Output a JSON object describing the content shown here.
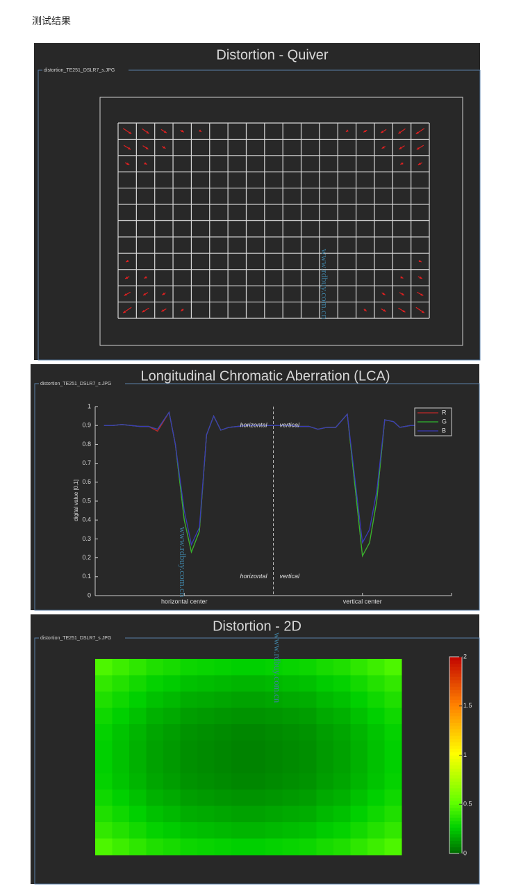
{
  "heading": "测试结果",
  "chart_data": [
    {
      "type": "quiver",
      "title": "Distortion - Quiver",
      "subtitle": "distortion_TE251_DSLR7_s.JPG",
      "watermark": "www.rdbuy.com.cn",
      "grid_cols": 17,
      "grid_rows": 12,
      "color": "#e02020",
      "arrows": [
        [
          0,
          0,
          12,
          8
        ],
        [
          1,
          0,
          10,
          7
        ],
        [
          2,
          0,
          8,
          5
        ],
        [
          3,
          0,
          5,
          3
        ],
        [
          4,
          0,
          3,
          2
        ],
        [
          12,
          0,
          -3,
          2
        ],
        [
          13,
          0,
          -5,
          3
        ],
        [
          14,
          0,
          -8,
          5
        ],
        [
          15,
          0,
          -10,
          7
        ],
        [
          16,
          0,
          -12,
          8
        ],
        [
          0,
          1,
          10,
          6
        ],
        [
          1,
          1,
          8,
          5
        ],
        [
          2,
          1,
          5,
          3
        ],
        [
          14,
          1,
          -5,
          3
        ],
        [
          15,
          1,
          -8,
          5
        ],
        [
          16,
          1,
          -10,
          6
        ],
        [
          0,
          2,
          6,
          3
        ],
        [
          1,
          2,
          4,
          2
        ],
        [
          15,
          2,
          -4,
          2
        ],
        [
          16,
          2,
          -6,
          3
        ],
        [
          0,
          8,
          -4,
          2
        ],
        [
          16,
          8,
          4,
          2
        ],
        [
          0,
          9,
          -6,
          3
        ],
        [
          1,
          9,
          -4,
          2
        ],
        [
          15,
          9,
          4,
          2
        ],
        [
          16,
          9,
          6,
          3
        ],
        [
          0,
          10,
          -9,
          5
        ],
        [
          1,
          10,
          -7,
          4
        ],
        [
          2,
          10,
          -5,
          3
        ],
        [
          14,
          10,
          5,
          3
        ],
        [
          15,
          10,
          7,
          4
        ],
        [
          16,
          10,
          9,
          5
        ],
        [
          0,
          11,
          -12,
          8
        ],
        [
          1,
          11,
          -10,
          6
        ],
        [
          2,
          11,
          -7,
          4
        ],
        [
          3,
          11,
          -4,
          3
        ],
        [
          13,
          11,
          4,
          3
        ],
        [
          14,
          11,
          7,
          4
        ],
        [
          15,
          11,
          10,
          6
        ],
        [
          16,
          11,
          12,
          8
        ]
      ]
    },
    {
      "type": "line",
      "title": "Longitudinal Chromatic Aberration (LCA)",
      "subtitle": "distortion_TE251_DSLR7_s.JPG",
      "watermark": "www.rdbuy.com.cn",
      "y_label": "digital value [0,1]",
      "x": [
        1,
        2,
        3,
        4,
        5,
        6,
        7,
        8.3,
        9,
        10,
        10.8,
        11.7,
        12.5,
        13.3,
        14.1,
        15,
        16,
        17,
        18,
        19,
        20,
        21,
        22,
        23,
        24,
        25,
        26,
        27,
        28.3,
        30,
        30.8,
        31.6,
        32.5,
        33.5,
        34.2,
        35.4,
        36.2
      ],
      "series": [
        {
          "name": "R",
          "color": "#c02828",
          "values": [
            0.9,
            0.9,
            0.905,
            0.9,
            0.895,
            0.895,
            0.87,
            0.97,
            0.8,
            0.4,
            0.23,
            0.34,
            0.85,
            0.95,
            0.875,
            0.89,
            0.895,
            0.9,
            0.9,
            0.9,
            0.9,
            0.9,
            0.9,
            0.895,
            0.895,
            0.88,
            0.89,
            0.89,
            0.96,
            0.21,
            0.28,
            0.5,
            0.93,
            0.92,
            0.89,
            0.9,
            0.9
          ]
        },
        {
          "name": "G",
          "color": "#2eb82e",
          "values": [
            0.9,
            0.9,
            0.905,
            0.9,
            0.895,
            0.895,
            0.88,
            0.97,
            0.8,
            0.4,
            0.23,
            0.34,
            0.85,
            0.95,
            0.875,
            0.89,
            0.895,
            0.9,
            0.9,
            0.9,
            0.9,
            0.9,
            0.9,
            0.895,
            0.895,
            0.88,
            0.89,
            0.89,
            0.96,
            0.21,
            0.28,
            0.5,
            0.93,
            0.92,
            0.89,
            0.9,
            0.9
          ]
        },
        {
          "name": "B",
          "color": "#3a3ab8",
          "values": [
            0.9,
            0.9,
            0.905,
            0.9,
            0.895,
            0.895,
            0.88,
            0.97,
            0.8,
            0.45,
            0.27,
            0.36,
            0.85,
            0.95,
            0.875,
            0.89,
            0.895,
            0.9,
            0.9,
            0.9,
            0.9,
            0.9,
            0.9,
            0.895,
            0.895,
            0.88,
            0.89,
            0.89,
            0.96,
            0.28,
            0.35,
            0.55,
            0.93,
            0.92,
            0.89,
            0.9,
            0.9
          ]
        }
      ],
      "xlim": [
        0,
        40
      ],
      "ylim": [
        0,
        1
      ],
      "yticks": [
        0,
        0.1,
        0.2,
        0.3,
        0.4,
        0.5,
        0.6,
        0.7,
        0.8,
        0.9,
        1
      ],
      "xticks": [
        {
          "value": 10,
          "label": "horizontal center"
        },
        {
          "value": 30,
          "label": "vertical center"
        }
      ],
      "divider": 20,
      "annotations": [
        {
          "text": "horizontal",
          "x": 19.3,
          "y": 0.9
        },
        {
          "text": "vertical",
          "x": 20.7,
          "y": 0.9
        },
        {
          "text": "horizontal",
          "x": 19.3,
          "y": 0.1
        },
        {
          "text": "vertical",
          "x": 20.7,
          "y": 0.1
        }
      ],
      "legend": "top-right"
    },
    {
      "type": "heatmap",
      "title": "Distortion - 2D",
      "subtitle": "distortion_TE251_DSLR7_s.JPG",
      "watermark": "www.rdbuy.com.cn",
      "clim": [
        0,
        2
      ],
      "cticks": [
        0,
        0.5,
        1,
        1.5,
        2
      ],
      "colormap": [
        [
          0,
          "#007000"
        ],
        [
          0.25,
          "#00d000"
        ],
        [
          0.5,
          "#60ff00"
        ],
        [
          1,
          "#ffff00"
        ],
        [
          1.5,
          "#ff8000"
        ],
        [
          2,
          "#c00000"
        ]
      ],
      "values": [
        [
          0.45,
          0.41,
          0.37,
          0.33,
          0.31,
          0.28,
          0.27,
          0.26,
          0.25,
          0.25,
          0.26,
          0.27,
          0.28,
          0.31,
          0.33,
          0.37,
          0.41,
          0.45
        ],
        [
          0.38,
          0.34,
          0.3,
          0.26,
          0.24,
          0.21,
          0.2,
          0.19,
          0.18,
          0.18,
          0.19,
          0.2,
          0.21,
          0.24,
          0.26,
          0.3,
          0.34,
          0.38
        ],
        [
          0.33,
          0.29,
          0.25,
          0.21,
          0.19,
          0.16,
          0.15,
          0.14,
          0.13,
          0.13,
          0.14,
          0.15,
          0.16,
          0.19,
          0.21,
          0.25,
          0.29,
          0.33
        ],
        [
          0.29,
          0.25,
          0.21,
          0.17,
          0.15,
          0.12,
          0.11,
          0.1,
          0.09,
          0.09,
          0.1,
          0.11,
          0.12,
          0.15,
          0.17,
          0.21,
          0.25,
          0.29
        ],
        [
          0.26,
          0.22,
          0.18,
          0.14,
          0.12,
          0.09,
          0.08,
          0.07,
          0.06,
          0.06,
          0.07,
          0.08,
          0.09,
          0.12,
          0.14,
          0.18,
          0.22,
          0.26
        ],
        [
          0.25,
          0.21,
          0.17,
          0.13,
          0.11,
          0.08,
          0.07,
          0.06,
          0.05,
          0.05,
          0.06,
          0.07,
          0.08,
          0.11,
          0.13,
          0.17,
          0.21,
          0.25
        ],
        [
          0.25,
          0.21,
          0.17,
          0.13,
          0.11,
          0.08,
          0.07,
          0.06,
          0.05,
          0.05,
          0.06,
          0.07,
          0.08,
          0.11,
          0.13,
          0.17,
          0.21,
          0.25
        ],
        [
          0.26,
          0.22,
          0.18,
          0.14,
          0.12,
          0.09,
          0.08,
          0.07,
          0.06,
          0.06,
          0.07,
          0.08,
          0.09,
          0.12,
          0.14,
          0.18,
          0.22,
          0.26
        ],
        [
          0.29,
          0.25,
          0.21,
          0.17,
          0.15,
          0.12,
          0.11,
          0.1,
          0.09,
          0.09,
          0.1,
          0.11,
          0.12,
          0.15,
          0.17,
          0.21,
          0.25,
          0.29
        ],
        [
          0.33,
          0.29,
          0.25,
          0.21,
          0.19,
          0.16,
          0.15,
          0.14,
          0.13,
          0.13,
          0.14,
          0.15,
          0.16,
          0.19,
          0.21,
          0.25,
          0.29,
          0.33
        ],
        [
          0.38,
          0.34,
          0.3,
          0.26,
          0.24,
          0.21,
          0.2,
          0.19,
          0.18,
          0.18,
          0.19,
          0.2,
          0.21,
          0.24,
          0.26,
          0.3,
          0.34,
          0.38
        ],
        [
          0.45,
          0.41,
          0.37,
          0.33,
          0.31,
          0.28,
          0.27,
          0.26,
          0.25,
          0.25,
          0.26,
          0.27,
          0.28,
          0.31,
          0.33,
          0.37,
          0.41,
          0.45
        ]
      ]
    }
  ]
}
